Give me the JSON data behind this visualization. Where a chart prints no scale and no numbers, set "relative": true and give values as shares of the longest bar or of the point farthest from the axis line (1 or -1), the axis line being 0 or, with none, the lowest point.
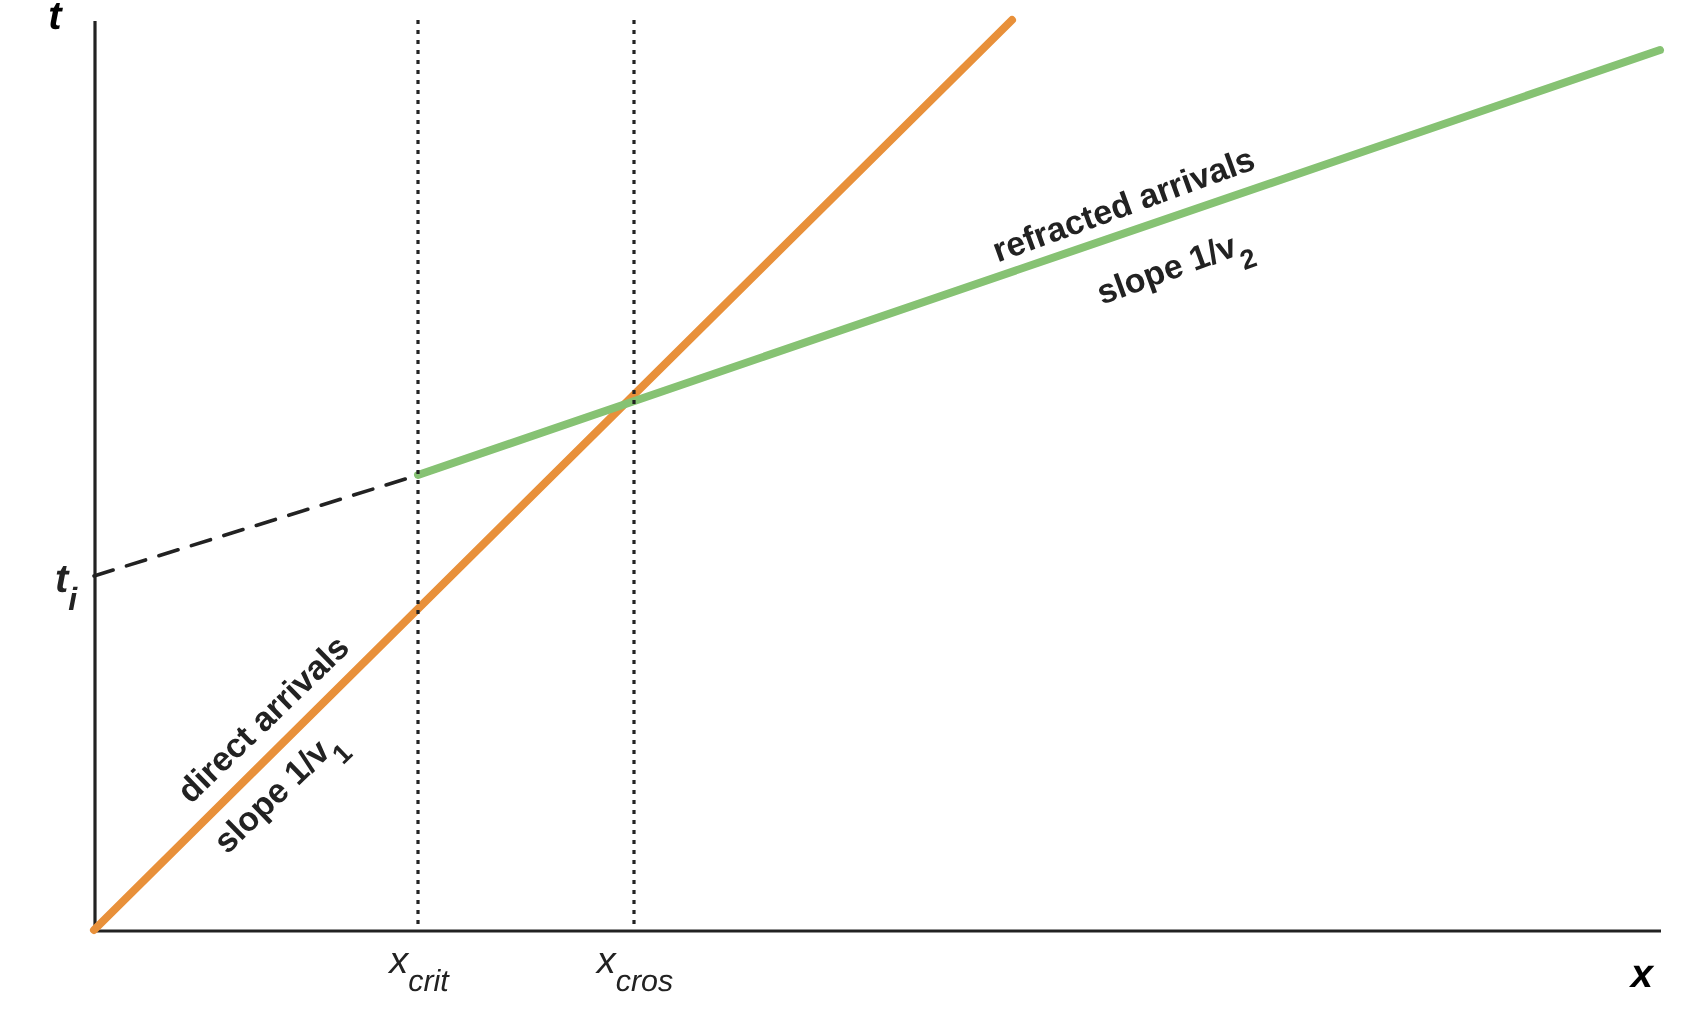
{
  "chart_data": {
    "type": "line",
    "relative": true,
    "xlabel": "x",
    "ylabel": "t",
    "categories": [
      null,
      null,
      null,
      null,
      null,
      null,
      "x$_{crit}$",
      null,
      null,
      null,
      "x$_{cros}$",
      null,
      null,
      null,
      null,
      null,
      null,
      null,
      null,
      null,
      null,
      null,
      null,
      null,
      null,
      null,
      null,
      null,
      null,
      null
    ],
    "series": [
      {
        "color": "#e8903a",
        "line_style": "solid",
        "values": [
          0,
          null,
          null,
          null,
          null,
          null,
          null,
          null,
          null,
          null,
          null,
          null,
          null,
          null,
          null,
          null,
          null,
          1,
          null,
          null,
          null,
          null,
          null,
          null,
          null,
          null,
          null,
          null,
          null,
          null
        ]
      },
      {
        "color": "#86c273",
        "line_style": "solid",
        "values": [
          null,
          null,
          null,
          null,
          null,
          null,
          0.5,
          null,
          null,
          null,
          null,
          null,
          null,
          null,
          null,
          null,
          null,
          null,
          null,
          null,
          null,
          null,
          null,
          null,
          null,
          null,
          null,
          null,
          null,
          0.967
        ]
      },
      {
        "color": "#222222",
        "line_style": "dashed",
        "values": [
          0.389,
          null,
          null,
          null,
          null,
          null,
          0.5,
          null,
          null,
          null,
          null,
          null,
          null,
          null,
          null,
          null,
          null,
          null,
          null,
          null,
          null,
          null,
          null,
          null,
          null,
          null,
          null,
          null,
          null,
          null
        ]
      }
    ],
    "ref_lines": [
      {
        "axis": "x",
        "value": "x$_{crit}$",
        "color": "#222222",
        "line_style": "dotted"
      },
      {
        "axis": "x",
        "value": "x$_{cros}$",
        "color": "#222222",
        "line_style": "dotted"
      }
    ],
    "annotations": [
      "t$_{i}$",
      "direct arrivals",
      "slope 1/v$_{1}$",
      "refracted arrivals",
      "slope 1/v$_{2}$"
    ],
    "grid": false
  }
}
